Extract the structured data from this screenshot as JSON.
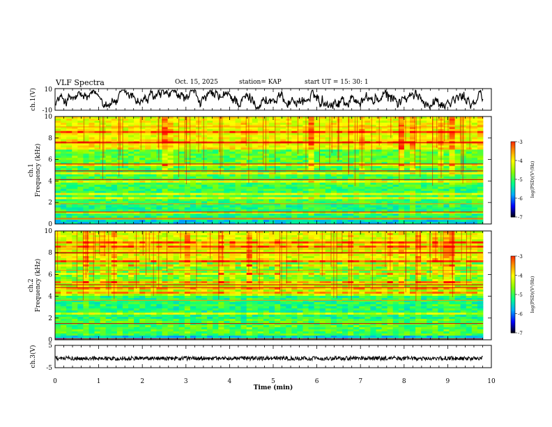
{
  "header": {
    "title": "VLF Spectra",
    "date": "Oct. 15, 2025",
    "station": "station= KAP",
    "start": "start  UT  =   15: 30: 1"
  },
  "chart_data": [
    {
      "type": "line",
      "panel": "ch1-waveform",
      "ylabel": "ch.1(V)",
      "ylim": [
        -10,
        10
      ],
      "yticks": [
        "10",
        "-10"
      ],
      "description_series": "ch.1 voltage vs time (noisy waveform)",
      "x_range_min": [
        0,
        9.85
      ]
    },
    {
      "type": "heatmap",
      "panel": "ch1-spectrogram",
      "ylabel": "ch.1 Frequency  (kHz)",
      "ylim": [
        0,
        10
      ],
      "yticks": [
        "0",
        "2",
        "4",
        "6",
        "8",
        "10"
      ],
      "x_range_min": [
        0,
        9.85
      ],
      "colorbar": {
        "label": "log(PSD)(V²/Hz)",
        "range": [
          -7,
          -3
        ],
        "ticks": [
          "-3",
          "-4",
          "-5",
          "-6",
          "-7"
        ]
      }
    },
    {
      "type": "heatmap",
      "panel": "ch2-spectrogram",
      "ylabel": "ch.2 Frequency  (kHz)",
      "ylim": [
        0,
        10
      ],
      "yticks": [
        "0",
        "2",
        "4",
        "6",
        "8",
        "10"
      ],
      "x_range_min": [
        0,
        9.85
      ],
      "colorbar": {
        "label": "log(PSD)(V²/Hz)",
        "range": [
          -7,
          -3
        ],
        "ticks": [
          "-3",
          "-4",
          "-5",
          "-6",
          "-7"
        ]
      }
    },
    {
      "type": "line",
      "panel": "ch3-waveform",
      "ylabel": "ch.3(V)",
      "ylim": [
        -5,
        5
      ],
      "yticks": [
        "5",
        "-5"
      ],
      "x_range_min": [
        0,
        9.85
      ],
      "approx_level": -0.8
    }
  ],
  "xaxis": {
    "label": "Time  (min)",
    "range": [
      0,
      10
    ],
    "ticks": [
      "0",
      "1",
      "2",
      "3",
      "4",
      "5",
      "6",
      "7",
      "8",
      "9",
      "10"
    ]
  },
  "colors": {
    "colormap": [
      "#000000",
      "#0000ff",
      "#00aaff",
      "#00ff88",
      "#88ff00",
      "#ffff00",
      "#ff8800",
      "#ff0000",
      "#ffffff"
    ],
    "line": "#000000"
  }
}
